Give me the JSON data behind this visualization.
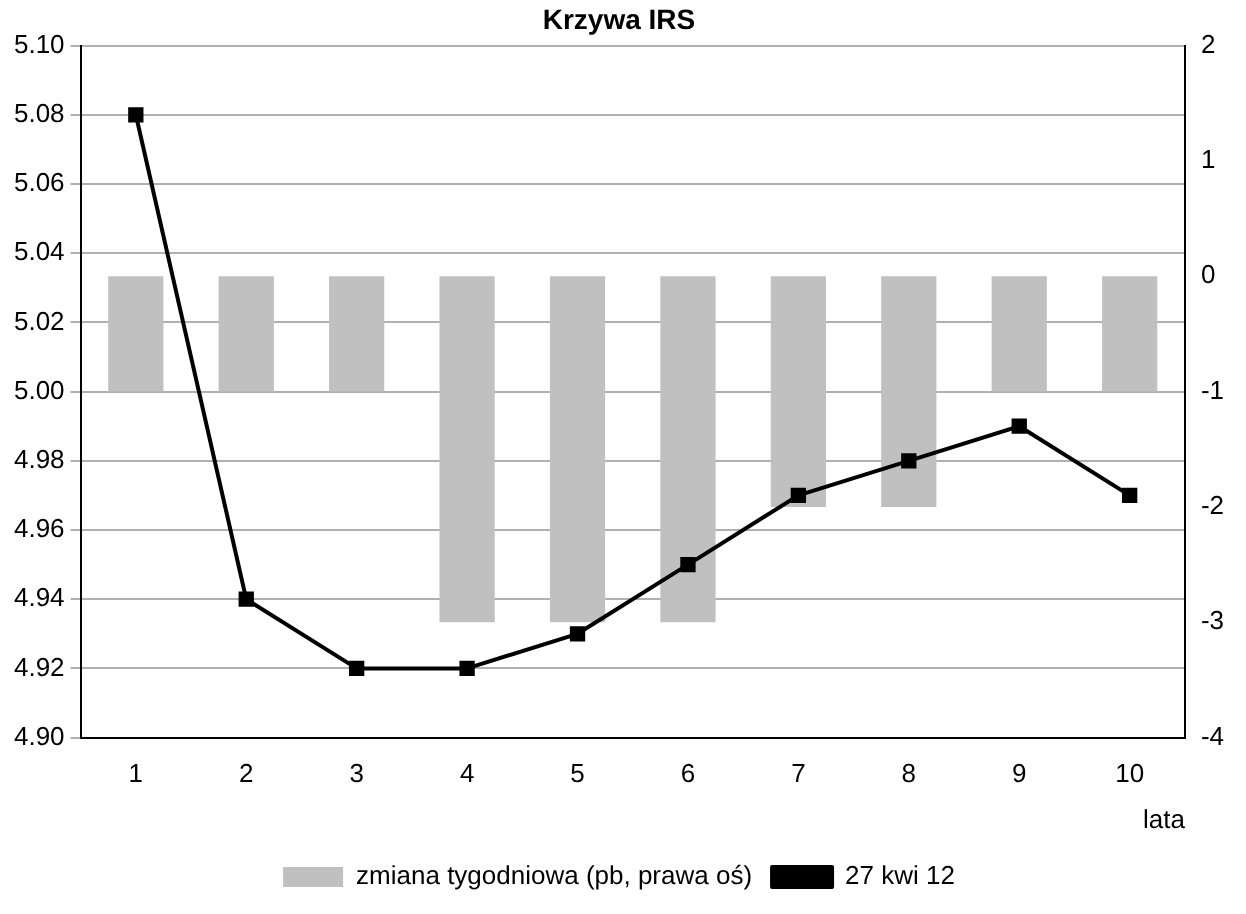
{
  "chart_data": {
    "type": "line",
    "title": "Krzywa IRS",
    "xlabel": "lata",
    "categories": [
      "1",
      "2",
      "3",
      "4",
      "5",
      "6",
      "7",
      "8",
      "9",
      "10"
    ],
    "series": [
      {
        "name": "zmiana tygodniowa (pb, prawa oś)",
        "type": "bar",
        "axis": "y2",
        "color": "#c0c0c0",
        "values": [
          -1,
          -1,
          -1,
          -3,
          -3,
          -3,
          -2,
          -2,
          -1,
          -1
        ]
      },
      {
        "name": "27 kwi 12",
        "color": "#000000",
        "values": [
          5.08,
          4.94,
          4.92,
          4.92,
          4.93,
          4.95,
          4.97,
          4.98,
          4.99,
          4.97
        ]
      }
    ],
    "ylim": [
      4.9,
      5.1
    ],
    "yticks": [
      {
        "value": 4.9,
        "label": "4.90"
      },
      {
        "value": 4.92,
        "label": "4.92"
      },
      {
        "value": 4.94,
        "label": "4.94"
      },
      {
        "value": 4.96,
        "label": "4.96"
      },
      {
        "value": 4.98,
        "label": "4.98"
      },
      {
        "value": 5.0,
        "label": "5.00"
      },
      {
        "value": 5.02,
        "label": "5.02"
      },
      {
        "value": 5.04,
        "label": "5.04"
      },
      {
        "value": 5.06,
        "label": "5.06"
      },
      {
        "value": 5.08,
        "label": "5.08"
      },
      {
        "value": 5.1,
        "label": "5.10"
      }
    ],
    "y2lim": [
      -4,
      2
    ],
    "y2ticks": [
      -4,
      -3,
      -2,
      -1,
      0,
      1,
      2
    ],
    "grid": "y",
    "legend": "bottom",
    "marker": "square",
    "line_style": "solid"
  }
}
